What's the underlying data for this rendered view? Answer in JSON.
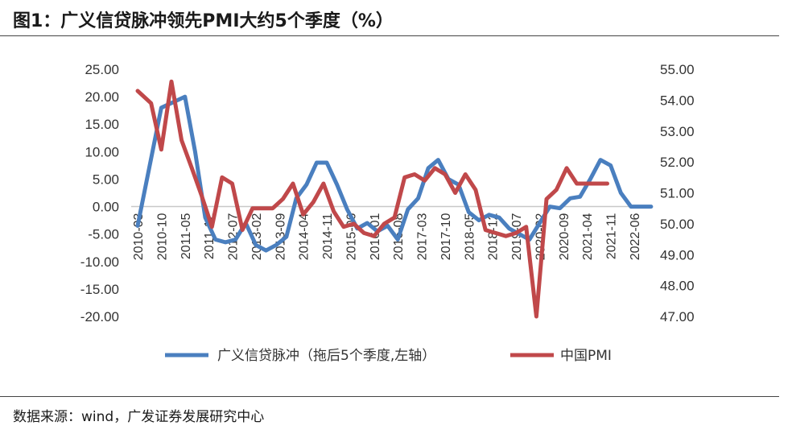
{
  "header": {
    "title": "图1：广义信贷脉冲领先PMI大约5个季度（%）"
  },
  "footer": {
    "source": "数据来源：wind，广发证券发展研究中心"
  },
  "chart_data": {
    "type": "line",
    "categories": [
      "2010-03",
      "2010-10",
      "2011-05",
      "2011-12",
      "2012-07",
      "2013-02",
      "2013-09",
      "2014-04",
      "2014-11",
      "2015-06",
      "2016-01",
      "2016-08",
      "2017-03",
      "2017-10",
      "2018-05",
      "2018-12",
      "2019-07",
      "2020-02",
      "2020-09",
      "2021-04",
      "2021-11",
      "2022-06"
    ],
    "y_left_ticks": [
      "25.00",
      "20.00",
      "15.00",
      "10.00",
      "5.00",
      "0.00",
      "-5.00",
      "-10.00",
      "-15.00",
      "-20.00"
    ],
    "y_right_ticks": [
      "55.00",
      "54.00",
      "53.00",
      "52.00",
      "51.00",
      "50.00",
      "49.00",
      "48.00",
      "47.00"
    ],
    "ylim_left": [
      -20,
      25
    ],
    "ylim_right": [
      47,
      55
    ],
    "series": [
      {
        "name": "广义信贷脉冲（拖后5个季度,左轴）",
        "axis": "left",
        "color": "#4a7fbf",
        "x": [
          0,
          1,
          2,
          2.43,
          2.86,
          3.29,
          3.71,
          4.14,
          4.57,
          5,
          5.43,
          5.86,
          6.29,
          6.71,
          7.14,
          7.57,
          8,
          8.43,
          8.86,
          9.29,
          9.71,
          10.14,
          10.57,
          11,
          11.43,
          11.86,
          12.29,
          12.71,
          13.14,
          13.57,
          14,
          14.43,
          14.86,
          15.29,
          15.71,
          16.14,
          16.57,
          17,
          17.43,
          17.86,
          18.29,
          18.71,
          19.14,
          19.57,
          20,
          20.43,
          20.86,
          21.29,
          21.71
        ],
        "values": [
          -3.5,
          18,
          20,
          10,
          -2,
          -6,
          -6.5,
          -6,
          -3,
          -7,
          -8,
          -7,
          -5.5,
          1.5,
          4,
          8,
          8,
          4,
          -0.5,
          -4,
          -3,
          -4.5,
          -3.5,
          -6,
          -0.5,
          1.5,
          7,
          8.5,
          5,
          4,
          -1,
          -2.5,
          -1.5,
          -2,
          -4,
          -5,
          -6,
          -3,
          0,
          -0.3,
          1.5,
          1.8,
          5,
          8.5,
          7.5,
          2.5,
          0,
          0,
          0
        ]
      },
      {
        "name": "中国PMI",
        "color": "#c0484a",
        "axis": "right",
        "x": [
          0,
          0.57,
          1,
          1.43,
          1.86,
          2.29,
          2.71,
          3.14,
          3.57,
          4,
          4.43,
          4.86,
          5.29,
          5.71,
          6.14,
          6.57,
          7,
          7.43,
          7.86,
          8.29,
          8.71,
          9.14,
          9.57,
          10,
          10.43,
          10.86,
          11.29,
          11.71,
          12.14,
          12.57,
          13,
          13.43,
          13.86,
          14.29,
          14.71,
          15.14,
          15.57,
          16,
          16.43,
          16.86,
          17.29,
          17.71,
          18.14,
          18.57,
          19,
          19.43,
          19.86
        ],
        "values": [
          54.3,
          53.9,
          52.4,
          54.6,
          52.7,
          51.8,
          50.9,
          49.9,
          51.5,
          51.3,
          49.8,
          50.5,
          50.5,
          50.5,
          50.8,
          51.3,
          50.3,
          50.7,
          51.3,
          50.4,
          49.9,
          50.0,
          49.7,
          49.6,
          50.0,
          50.2,
          51.5,
          51.6,
          51.4,
          51.8,
          51.6,
          51.0,
          51.6,
          51.1,
          49.8,
          49.7,
          49.6,
          49.7,
          49.9,
          47.0,
          50.8,
          51.1,
          51.8,
          51.3,
          51.3,
          51.3,
          51.3
        ]
      }
    ]
  }
}
